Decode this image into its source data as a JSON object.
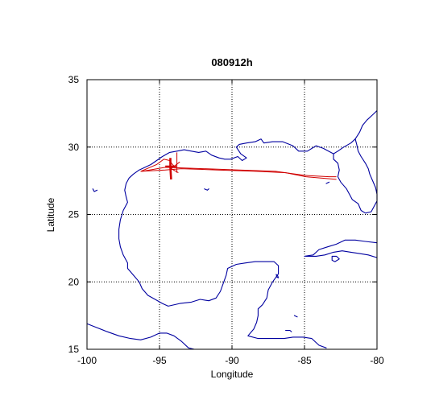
{
  "chart_data": {
    "type": "map-plot",
    "title": "080912h",
    "xlabel": "Longitude",
    "ylabel": "Latitude",
    "xlim": [
      -100,
      -80
    ],
    "ylim": [
      15,
      35
    ],
    "x_ticks": [
      -100,
      -95,
      -90,
      -85,
      -80
    ],
    "y_ticks": [
      15,
      20,
      25,
      30,
      35
    ],
    "grid": true,
    "colors": {
      "coastline": "#0000a0",
      "track": "#d00000"
    },
    "coastlines": [
      {
        "name": "gulf-north-and-west-coast",
        "points": [
          [
            -81.5,
            30.6
          ],
          [
            -81.8,
            30.3
          ],
          [
            -82.3,
            30.0
          ],
          [
            -82.7,
            29.7
          ],
          [
            -83.0,
            29.5
          ],
          [
            -83.7,
            29.9
          ],
          [
            -84.2,
            30.1
          ],
          [
            -84.8,
            29.7
          ],
          [
            -85.4,
            29.7
          ],
          [
            -85.8,
            30.1
          ],
          [
            -86.5,
            30.4
          ],
          [
            -87.2,
            30.4
          ],
          [
            -87.8,
            30.3
          ],
          [
            -88.0,
            30.6
          ],
          [
            -88.4,
            30.4
          ],
          [
            -89.0,
            30.3
          ],
          [
            -89.5,
            30.2
          ],
          [
            -89.7,
            30.0
          ],
          [
            -89.4,
            29.5
          ],
          [
            -89.0,
            29.2
          ],
          [
            -89.3,
            29.0
          ],
          [
            -89.6,
            29.3
          ],
          [
            -90.1,
            29.1
          ],
          [
            -90.5,
            29.1
          ],
          [
            -90.9,
            29.2
          ],
          [
            -91.4,
            29.4
          ],
          [
            -91.8,
            29.7
          ],
          [
            -92.3,
            29.6
          ],
          [
            -92.8,
            29.7
          ],
          [
            -93.3,
            29.8
          ],
          [
            -93.8,
            29.7
          ],
          [
            -94.3,
            29.6
          ],
          [
            -94.8,
            29.3
          ],
          [
            -95.2,
            29.0
          ],
          [
            -95.6,
            28.7
          ],
          [
            -96.0,
            28.5
          ],
          [
            -96.4,
            28.3
          ],
          [
            -96.8,
            28.0
          ],
          [
            -97.1,
            27.7
          ],
          [
            -97.3,
            27.3
          ],
          [
            -97.4,
            26.8
          ],
          [
            -97.3,
            26.3
          ],
          [
            -97.2,
            25.9
          ],
          [
            -97.5,
            25.3
          ],
          [
            -97.7,
            24.6
          ],
          [
            -97.8,
            23.9
          ],
          [
            -97.8,
            23.2
          ],
          [
            -97.7,
            22.6
          ],
          [
            -97.5,
            22.0
          ],
          [
            -97.2,
            21.4
          ],
          [
            -97.2,
            21.0
          ],
          [
            -96.8,
            20.5
          ],
          [
            -96.4,
            20.0
          ],
          [
            -96.2,
            19.5
          ],
          [
            -95.8,
            19.0
          ],
          [
            -95.3,
            18.7
          ],
          [
            -94.8,
            18.4
          ],
          [
            -94.4,
            18.2
          ],
          [
            -93.6,
            18.4
          ],
          [
            -92.8,
            18.5
          ],
          [
            -92.2,
            18.7
          ],
          [
            -91.6,
            18.6
          ],
          [
            -91.1,
            18.8
          ],
          [
            -90.8,
            19.3
          ],
          [
            -90.6,
            19.9
          ],
          [
            -90.4,
            20.5
          ],
          [
            -90.3,
            21.0
          ],
          [
            -89.7,
            21.3
          ],
          [
            -89.1,
            21.4
          ],
          [
            -88.4,
            21.5
          ],
          [
            -87.7,
            21.5
          ],
          [
            -87.1,
            21.5
          ],
          [
            -86.8,
            21.2
          ],
          [
            -86.8,
            20.6
          ],
          [
            -87.2,
            20.0
          ],
          [
            -87.5,
            19.4
          ],
          [
            -87.6,
            18.8
          ],
          [
            -87.9,
            18.3
          ],
          [
            -88.2,
            18.0
          ],
          [
            -88.2,
            17.5
          ],
          [
            -88.3,
            17.0
          ],
          [
            -88.5,
            16.5
          ],
          [
            -88.9,
            16.0
          ],
          [
            -88.2,
            15.8
          ],
          [
            -87.6,
            15.8
          ],
          [
            -87.0,
            15.8
          ],
          [
            -86.4,
            15.8
          ],
          [
            -85.8,
            15.9
          ],
          [
            -85.1,
            15.9
          ],
          [
            -84.5,
            15.8
          ],
          [
            -84.0,
            15.3
          ],
          [
            -83.5,
            15.1
          ]
        ]
      },
      {
        "name": "pacific-coast-mexico",
        "points": [
          [
            -100.0,
            16.9
          ],
          [
            -99.3,
            16.6
          ],
          [
            -98.6,
            16.3
          ],
          [
            -97.8,
            16.0
          ],
          [
            -97.0,
            15.8
          ],
          [
            -96.3,
            15.7
          ],
          [
            -95.6,
            15.9
          ],
          [
            -95.0,
            16.2
          ],
          [
            -94.5,
            16.2
          ],
          [
            -94.0,
            16.0
          ],
          [
            -93.5,
            15.6
          ],
          [
            -93.0,
            15.1
          ],
          [
            -92.6,
            15.0
          ]
        ]
      },
      {
        "name": "florida-peninsula",
        "points": [
          [
            -81.5,
            30.6
          ],
          [
            -81.4,
            30.2
          ],
          [
            -81.3,
            29.7
          ],
          [
            -81.1,
            29.3
          ],
          [
            -80.8,
            28.8
          ],
          [
            -80.6,
            28.4
          ],
          [
            -80.5,
            28.0
          ],
          [
            -80.3,
            27.5
          ],
          [
            -80.1,
            27.0
          ],
          [
            -80.0,
            26.5
          ],
          [
            -80.0,
            26.0
          ],
          [
            -80.2,
            25.6
          ],
          [
            -80.4,
            25.2
          ],
          [
            -80.8,
            25.1
          ],
          [
            -81.1,
            25.3
          ],
          [
            -81.3,
            25.8
          ],
          [
            -81.7,
            26.1
          ],
          [
            -81.9,
            26.5
          ],
          [
            -82.1,
            26.9
          ],
          [
            -82.5,
            27.4
          ],
          [
            -82.7,
            27.8
          ],
          [
            -82.6,
            28.3
          ],
          [
            -82.7,
            28.8
          ],
          [
            -83.0,
            29.1
          ],
          [
            -83.0,
            29.5
          ]
        ]
      },
      {
        "name": "atlantic-coast-southeast",
        "points": [
          [
            -81.5,
            30.6
          ],
          [
            -81.2,
            31.1
          ],
          [
            -81.0,
            31.6
          ],
          [
            -80.7,
            32.0
          ],
          [
            -80.3,
            32.4
          ],
          [
            -80.0,
            32.7
          ]
        ]
      },
      {
        "name": "cuba",
        "points": [
          [
            -85.0,
            21.9
          ],
          [
            -84.4,
            22.0
          ],
          [
            -84.0,
            22.4
          ],
          [
            -83.4,
            22.6
          ],
          [
            -82.8,
            22.8
          ],
          [
            -82.2,
            23.1
          ],
          [
            -81.5,
            23.1
          ],
          [
            -80.8,
            23.0
          ],
          [
            -80.0,
            22.9
          ]
        ]
      },
      {
        "name": "cuba-south",
        "points": [
          [
            -80.0,
            21.8
          ],
          [
            -80.6,
            22.0
          ],
          [
            -81.2,
            22.1
          ],
          [
            -81.8,
            22.2
          ],
          [
            -82.4,
            22.3
          ],
          [
            -83.0,
            22.2
          ],
          [
            -83.6,
            22.0
          ],
          [
            -84.2,
            21.9
          ],
          [
            -84.9,
            21.9
          ]
        ]
      },
      {
        "name": "isla-de-la-juventud",
        "points": [
          [
            -83.1,
            21.9
          ],
          [
            -82.8,
            21.9
          ],
          [
            -82.6,
            21.7
          ],
          [
            -82.9,
            21.5
          ],
          [
            -83.1,
            21.6
          ],
          [
            -83.1,
            21.9
          ]
        ]
      },
      {
        "name": "cozumel",
        "points": [
          [
            -86.95,
            20.55
          ],
          [
            -86.85,
            20.45
          ],
          [
            -86.8,
            20.3
          ],
          [
            -86.9,
            20.35
          ],
          [
            -86.95,
            20.55
          ]
        ]
      },
      {
        "name": "cay-1",
        "points": [
          [
            -99.6,
            26.9
          ],
          [
            -99.5,
            26.7
          ],
          [
            -99.3,
            26.8
          ]
        ]
      },
      {
        "name": "cay-2",
        "points": [
          [
            -83.5,
            27.3
          ],
          [
            -83.3,
            27.4
          ]
        ]
      },
      {
        "name": "cay-3",
        "points": [
          [
            -91.9,
            26.9
          ],
          [
            -91.7,
            26.8
          ],
          [
            -91.6,
            26.9
          ]
        ]
      },
      {
        "name": "cay-4",
        "points": [
          [
            -85.7,
            17.5
          ],
          [
            -85.5,
            17.4
          ]
        ]
      },
      {
        "name": "cay-5",
        "points": [
          [
            -86.3,
            16.4
          ],
          [
            -86.0,
            16.4
          ],
          [
            -85.9,
            16.3
          ]
        ]
      }
    ],
    "tracks": [
      {
        "name": "ike-track-main",
        "points": [
          [
            -96.2,
            28.2
          ],
          [
            -94.6,
            28.5
          ],
          [
            -92.0,
            28.4
          ],
          [
            -89.5,
            28.3
          ],
          [
            -87.0,
            28.2
          ],
          [
            -85.0,
            27.9
          ],
          [
            -83.3,
            27.8
          ],
          [
            -82.8,
            27.8
          ]
        ]
      },
      {
        "name": "ike-track-return",
        "points": [
          [
            -82.8,
            27.6
          ],
          [
            -84.9,
            27.8
          ],
          [
            -86.3,
            28.1
          ],
          [
            -88.3,
            28.2
          ],
          [
            -91.0,
            28.3
          ],
          [
            -93.5,
            28.4
          ],
          [
            -94.6,
            28.3
          ],
          [
            -96.3,
            28.2
          ]
        ]
      },
      {
        "name": "ike-track-loop",
        "points": [
          [
            -96.3,
            28.2
          ],
          [
            -95.2,
            28.7
          ],
          [
            -94.7,
            29.1
          ],
          [
            -94.3,
            29.0
          ],
          [
            -94.1,
            28.7
          ],
          [
            -93.9,
            28.5
          ],
          [
            -94.4,
            28.5
          ]
        ]
      },
      {
        "name": "ike-track-near-shore",
        "points": [
          [
            -93.8,
            29.6
          ],
          [
            -93.8,
            28.5
          ],
          [
            -93.8,
            28.1
          ]
        ]
      },
      {
        "name": "ike-track-marker-ray-1",
        "points": [
          [
            -94.2,
            28.4
          ],
          [
            -93.6,
            28.9
          ]
        ]
      },
      {
        "name": "ike-track-marker-ray-2",
        "points": [
          [
            -94.2,
            28.4
          ],
          [
            -93.7,
            28.1
          ]
        ]
      }
    ],
    "tracks_heavy": [
      {
        "name": "ike-landfall-stem",
        "points": [
          [
            -94.25,
            29.2
          ],
          [
            -94.25,
            28.5
          ],
          [
            -94.2,
            27.6
          ]
        ]
      },
      {
        "name": "ike-landfall-crossbar",
        "points": [
          [
            -94.6,
            28.55
          ],
          [
            -93.85,
            28.55
          ]
        ]
      }
    ]
  }
}
